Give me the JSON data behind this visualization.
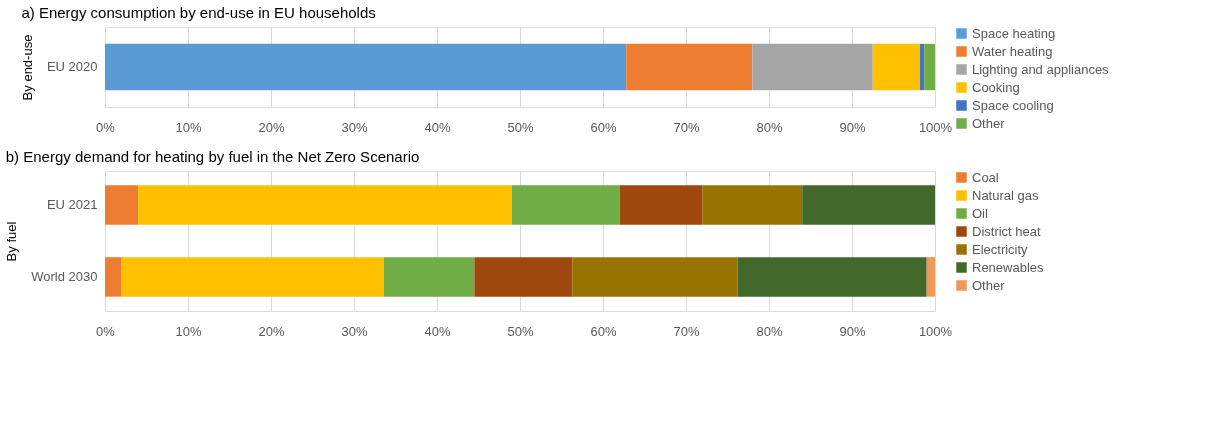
{
  "chart_data": [
    {
      "type": "bar",
      "orientation": "horizontal",
      "stacked": true,
      "title": "a) Energy consumption by end-use in EU households",
      "ylabel": "By end-use",
      "categories": [
        "EU 2020"
      ],
      "series": [
        {
          "name": "Space heating",
          "color": "#5b9bd5",
          "values": [
            62.8
          ]
        },
        {
          "name": "Water heating",
          "color": "#ed7d31",
          "values": [
            15.2
          ]
        },
        {
          "name": "Lighting and appliances",
          "color": "#a5a5a5",
          "values": [
            14.5
          ]
        },
        {
          "name": "Cooking",
          "color": "#ffc000",
          "values": [
            5.7
          ]
        },
        {
          "name": "Space cooling",
          "color": "#4472c4",
          "values": [
            0.5
          ]
        },
        {
          "name": "Other",
          "color": "#70ad47",
          "values": [
            1.3
          ]
        }
      ],
      "xlim": [
        0,
        100
      ],
      "xticks": [
        {
          "value": 0,
          "label": "0%"
        },
        {
          "value": 10,
          "label": "10%"
        },
        {
          "value": 20,
          "label": "20%"
        },
        {
          "value": 30,
          "label": "30%"
        },
        {
          "value": 40,
          "label": "40%"
        },
        {
          "value": 50,
          "label": "50%"
        },
        {
          "value": 60,
          "label": "60%"
        },
        {
          "value": 70,
          "label": "70%"
        },
        {
          "value": 80,
          "label": "80%"
        },
        {
          "value": 90,
          "label": "90%"
        },
        {
          "value": 100,
          "label": "100%"
        }
      ],
      "grid": "x",
      "legend": "right"
    },
    {
      "type": "bar",
      "orientation": "horizontal",
      "stacked": true,
      "title": "b) Energy demand for heating by fuel in the Net Zero Scenario",
      "ylabel": "By fuel",
      "categories": [
        "EU 2021",
        "World 2030"
      ],
      "series": [
        {
          "name": "Coal",
          "color": "#ed7d31",
          "values": [
            4.0,
            2.0
          ]
        },
        {
          "name": "Natural gas",
          "color": "#ffc000",
          "values": [
            45.0,
            31.6
          ]
        },
        {
          "name": "Oil",
          "color": "#70ad47",
          "values": [
            13.0,
            10.9
          ]
        },
        {
          "name": "District heat",
          "color": "#9e480e",
          "values": [
            10.0,
            11.8
          ]
        },
        {
          "name": "Electricity",
          "color": "#997300",
          "values": [
            12.0,
            19.9
          ]
        },
        {
          "name": "Renewables",
          "color": "#43682b",
          "values": [
            16.0,
            22.8
          ]
        },
        {
          "name": "Other",
          "color": "#f1975a",
          "values": [
            null,
            1.0
          ]
        }
      ],
      "xlim": [
        0,
        100
      ],
      "xticks": [
        {
          "value": 0,
          "label": "0%"
        },
        {
          "value": 10,
          "label": "10%"
        },
        {
          "value": 20,
          "label": "20%"
        },
        {
          "value": 30,
          "label": "30%"
        },
        {
          "value": 40,
          "label": "40%"
        },
        {
          "value": 50,
          "label": "50%"
        },
        {
          "value": 60,
          "label": "60%"
        },
        {
          "value": 70,
          "label": "70%"
        },
        {
          "value": 80,
          "label": "80%"
        },
        {
          "value": 90,
          "label": "90%"
        },
        {
          "value": 100,
          "label": "100%"
        }
      ],
      "grid": "x",
      "legend": "right"
    }
  ]
}
